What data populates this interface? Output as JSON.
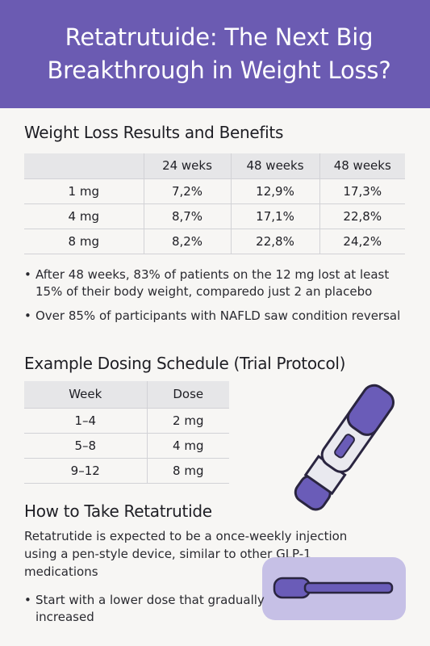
{
  "header": {
    "title_line1": "Retatrutuide: The Next Big",
    "title_line2": "Breakthrough in Weight Loss?"
  },
  "section1": {
    "title": "Weight Loss Results and Benefits",
    "table": {
      "headers": [
        "",
        "24 weks",
        "48 weeks",
        "48 weeks"
      ],
      "rows": [
        [
          "1 mg",
          "7,2%",
          "12,9%",
          "17,3%"
        ],
        [
          "4 mg",
          "8,7%",
          "17,1%",
          "22,8%"
        ],
        [
          "8 mg",
          "8,2%",
          "22,8%",
          "24,2%"
        ]
      ]
    },
    "bullets": [
      "After 48 weeks, 83% of patients on the 12 mg lost at least 15% of their body weight, comparedo just 2 an placebo",
      "Over 85% of participants with NAFLD saw condition reversal"
    ]
  },
  "section2": {
    "title": "Example Dosing Schedule (Trial Protocol)",
    "table": {
      "headers": [
        "Week",
        "Dose"
      ],
      "rows": [
        [
          "1–4",
          "2 mg"
        ],
        [
          "5–8",
          "4 mg"
        ],
        [
          "9–12",
          "8 mg"
        ]
      ]
    }
  },
  "section3": {
    "title": "How to Take Retatrutide",
    "paragraph": "Retatrutide is expected to be a once-weekly injection using a pen-style device, similar to other GLP-1 medications",
    "bullets": [
      "Start with a lower dose that gradually increased"
    ]
  },
  "colors": {
    "accent": "#6b5bb2",
    "pen_purple": "#6a5cb8",
    "card": "#c6c0e6"
  },
  "icons": {
    "pen_large": "injection-pen-icon",
    "pen_small": "injection-pen-small-icon"
  }
}
